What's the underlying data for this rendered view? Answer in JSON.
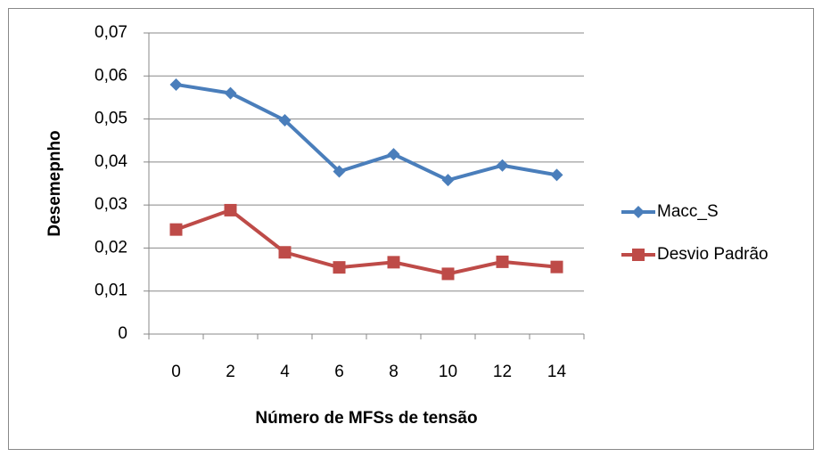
{
  "chart_data": {
    "type": "line",
    "y_label": "Desemepnho",
    "x_label": "Número de MFSs de tensão",
    "categories": [
      "0",
      "2",
      "4",
      "6",
      "8",
      "10",
      "12",
      "14"
    ],
    "series": [
      {
        "name": "Macc_S",
        "color": "#4a7ebb",
        "marker": "diamond",
        "values": [
          0.058,
          0.056,
          0.0497,
          0.0378,
          0.0418,
          0.0358,
          0.0392,
          0.037
        ]
      },
      {
        "name": "Desvio Padrão",
        "color": "#be4b48",
        "marker": "square",
        "values": [
          0.0243,
          0.0288,
          0.019,
          0.0155,
          0.0167,
          0.014,
          0.0168,
          0.0156
        ]
      }
    ],
    "ylim": [
      0,
      0.07
    ],
    "yticks": [
      0,
      {
        "value": 0.01,
        "label": "0,01"
      },
      {
        "value": 0.02,
        "label": "0,02"
      },
      {
        "value": 0.03,
        "label": "0,03"
      },
      {
        "value": 0.04,
        "label": "0,04"
      },
      {
        "value": 0.05,
        "label": "0,05"
      },
      {
        "value": 0.06,
        "label": "0,06"
      },
      {
        "value": 0.07,
        "label": "0,07"
      }
    ],
    "grid": true,
    "legend": "right"
  }
}
